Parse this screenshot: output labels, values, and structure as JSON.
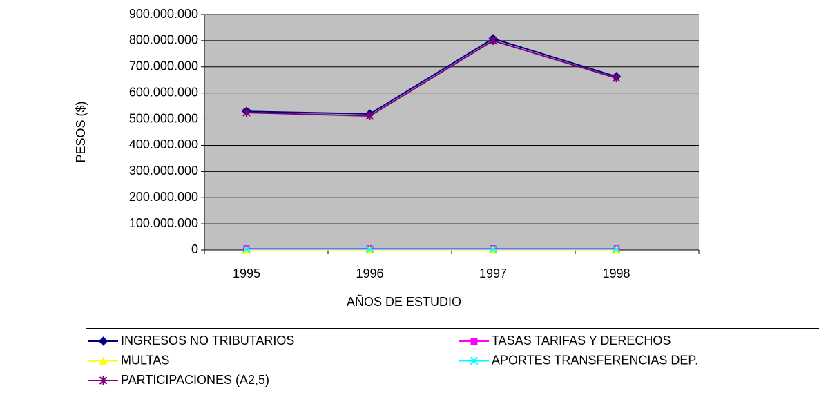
{
  "chart_data": {
    "type": "line",
    "x_label": "AÑOS DE ESTUDIO",
    "y_label": "PESOS ($)",
    "categories": [
      "1995",
      "1996",
      "1997",
      "1998"
    ],
    "series": [
      {
        "name": "INGRESOS NO TRIBUTARIOS",
        "color": "#000080",
        "marker": "diamond",
        "values": [
          530000000,
          520000000,
          808000000,
          663000000
        ]
      },
      {
        "name": "TASAS TARIFAS Y DERECHOS",
        "color": "#ff00ff",
        "marker": "square",
        "values": [
          5000000,
          5000000,
          5000000,
          5000000
        ]
      },
      {
        "name": "MULTAS",
        "color": "#ffff00",
        "marker": "triangle",
        "values": [
          1000000,
          1000000,
          1000000,
          1000000
        ]
      },
      {
        "name": "APORTES TRANSFERENCIAS DEP.",
        "color": "#00ffff",
        "marker": "x",
        "values": [
          3000000,
          3000000,
          3000000,
          3000000
        ]
      },
      {
        "name": "PARTICIPACIONES (A2,5)",
        "color": "#800080",
        "marker": "star",
        "values": [
          525000000,
          512000000,
          800000000,
          657000000
        ]
      }
    ],
    "ylim": [
      0,
      900000000
    ],
    "yticks": [
      0,
      {
        "value": 100000000,
        "label": "100.000.000"
      },
      {
        "value": 200000000,
        "label": "200.000.000"
      },
      {
        "value": 300000000,
        "label": "300.000.000"
      },
      {
        "value": 400000000,
        "label": "400.000.000"
      },
      {
        "value": 500000000,
        "label": "500.000.000"
      },
      {
        "value": 600000000,
        "label": "600.000.000"
      },
      {
        "value": 700000000,
        "label": "700.000.000"
      },
      {
        "value": 800000000,
        "label": "800.000.000"
      },
      {
        "value": 900000000,
        "label": "900.000.000"
      }
    ],
    "grid": true,
    "legend": "bottom"
  }
}
